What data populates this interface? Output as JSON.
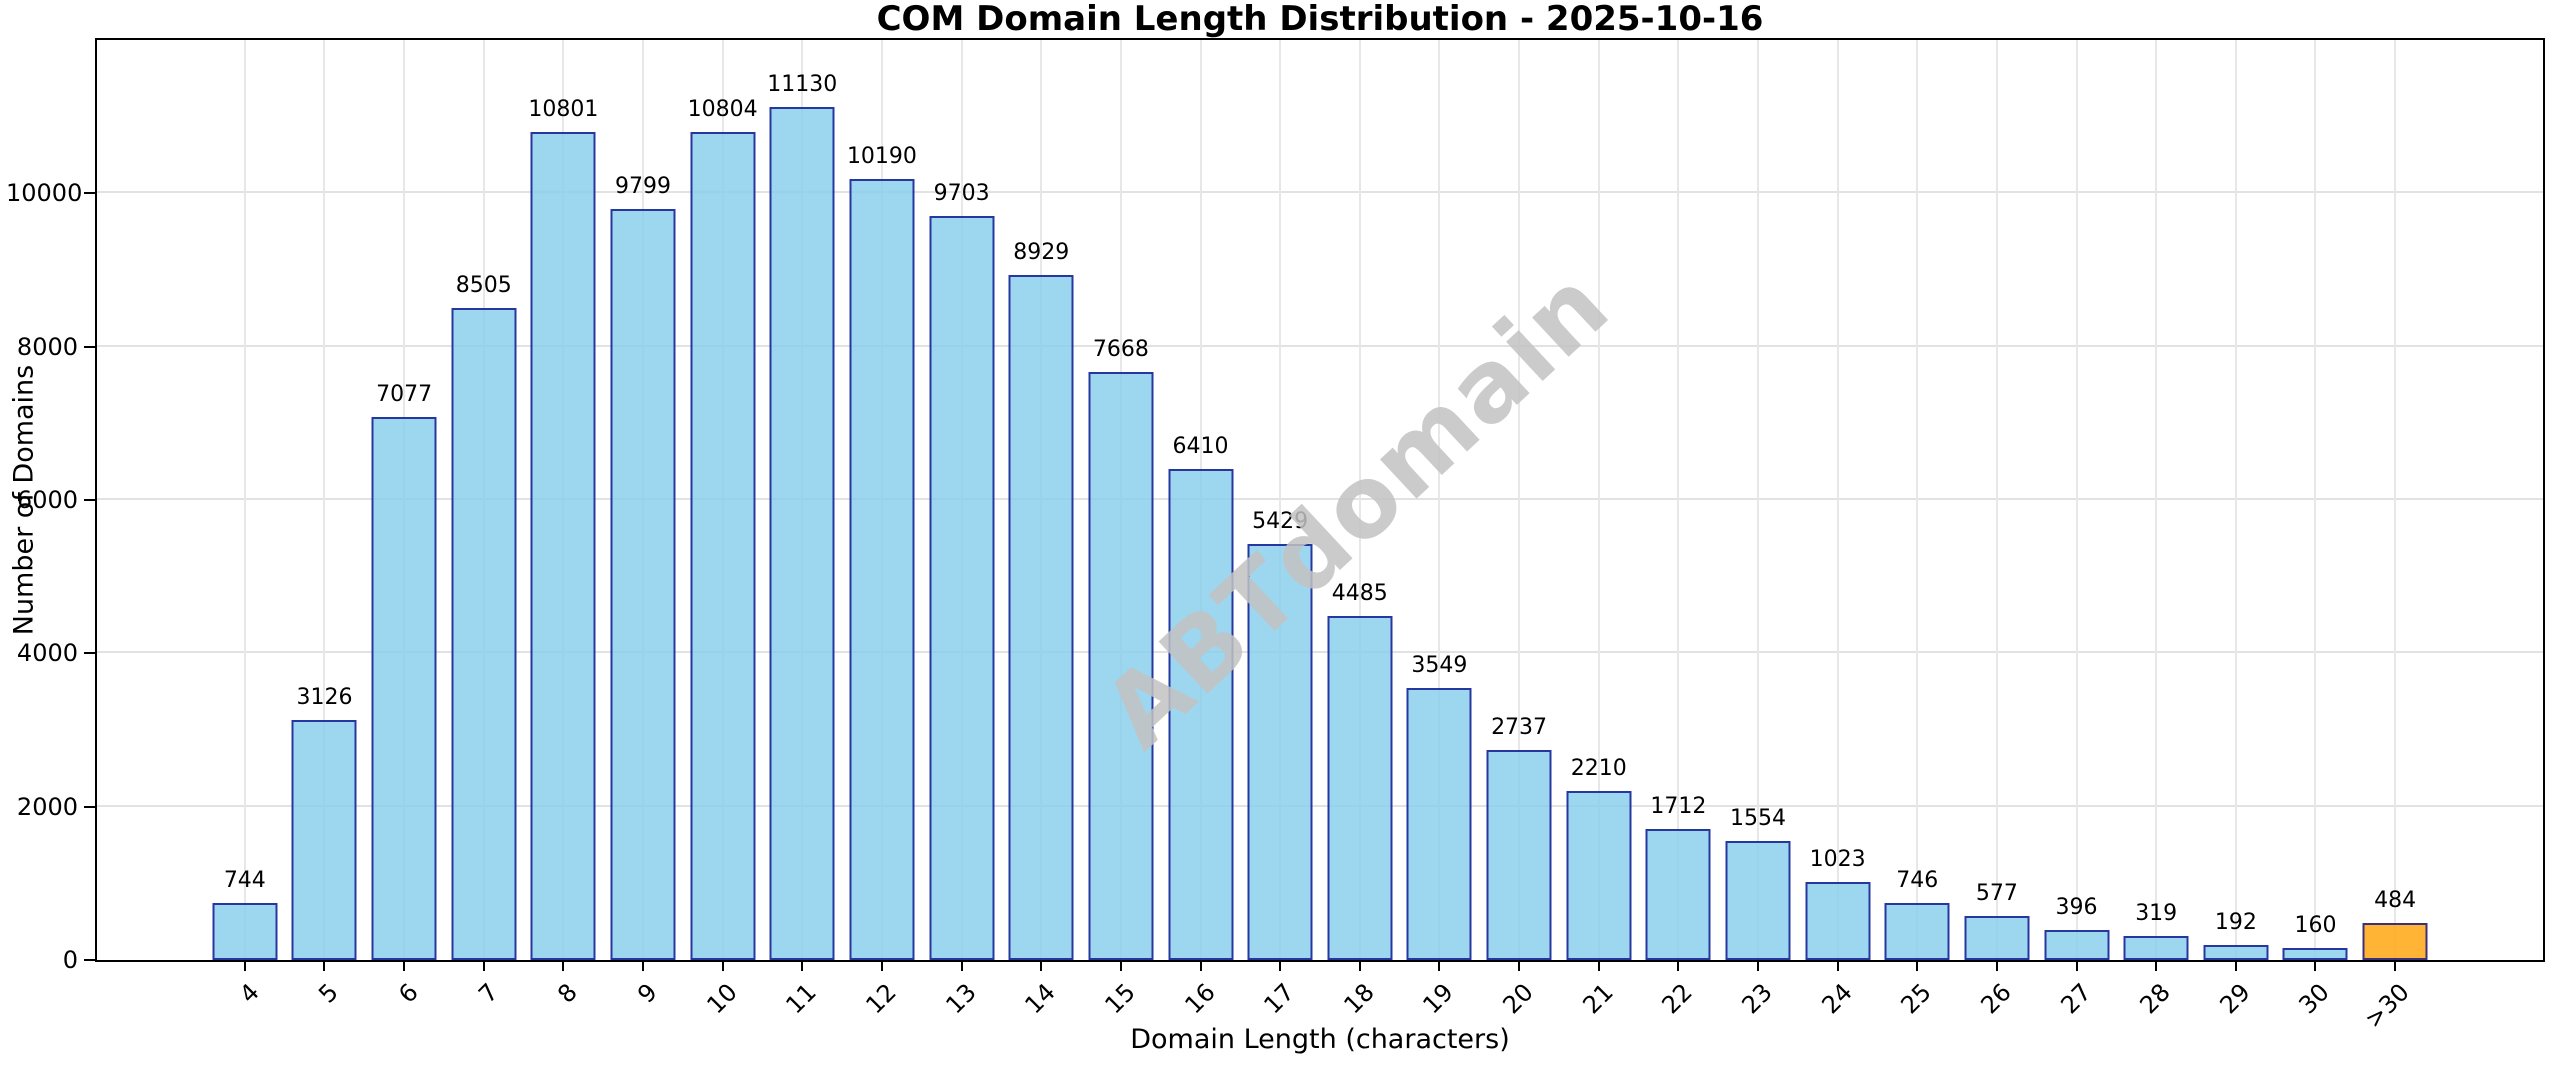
{
  "chart_data": {
    "type": "bar",
    "title": "COM Domain Length Distribution - 2025-10-16",
    "xlabel": "Domain Length (characters)",
    "ylabel": "Number of Domains",
    "categories": [
      "4",
      "5",
      "6",
      "7",
      "8",
      "9",
      "10",
      "11",
      "12",
      "13",
      "14",
      "15",
      "16",
      "17",
      "18",
      "19",
      "20",
      "21",
      "22",
      "23",
      "24",
      "25",
      "26",
      "27",
      "28",
      "29",
      "30",
      ">30"
    ],
    "values": [
      744,
      3126,
      7077,
      8505,
      10801,
      9799,
      10804,
      11130,
      10190,
      9703,
      8929,
      7668,
      6410,
      5429,
      4485,
      3549,
      2737,
      2210,
      1712,
      1554,
      1023,
      746,
      577,
      396,
      319,
      192,
      160,
      484
    ],
    "ylim": [
      0,
      12000
    ],
    "yticks": [
      0,
      2000,
      4000,
      6000,
      8000,
      10000
    ],
    "grid": true,
    "legend": null,
    "watermark": "ABTdomain",
    "highlight_category": ">30",
    "colors": {
      "bar_fill": "rgba(135,206,235,0.82)",
      "bar_edge": "rgba(10,15,140,0.8)",
      "highlight_fill": "rgba(255,170,25,0.88)",
      "highlight_edge": "rgba(10,15,140,0.8)",
      "grid": "#e2e2e2",
      "spine": "#000000",
      "text": "#000000",
      "watermark_gray": "#c3c3c3"
    }
  }
}
